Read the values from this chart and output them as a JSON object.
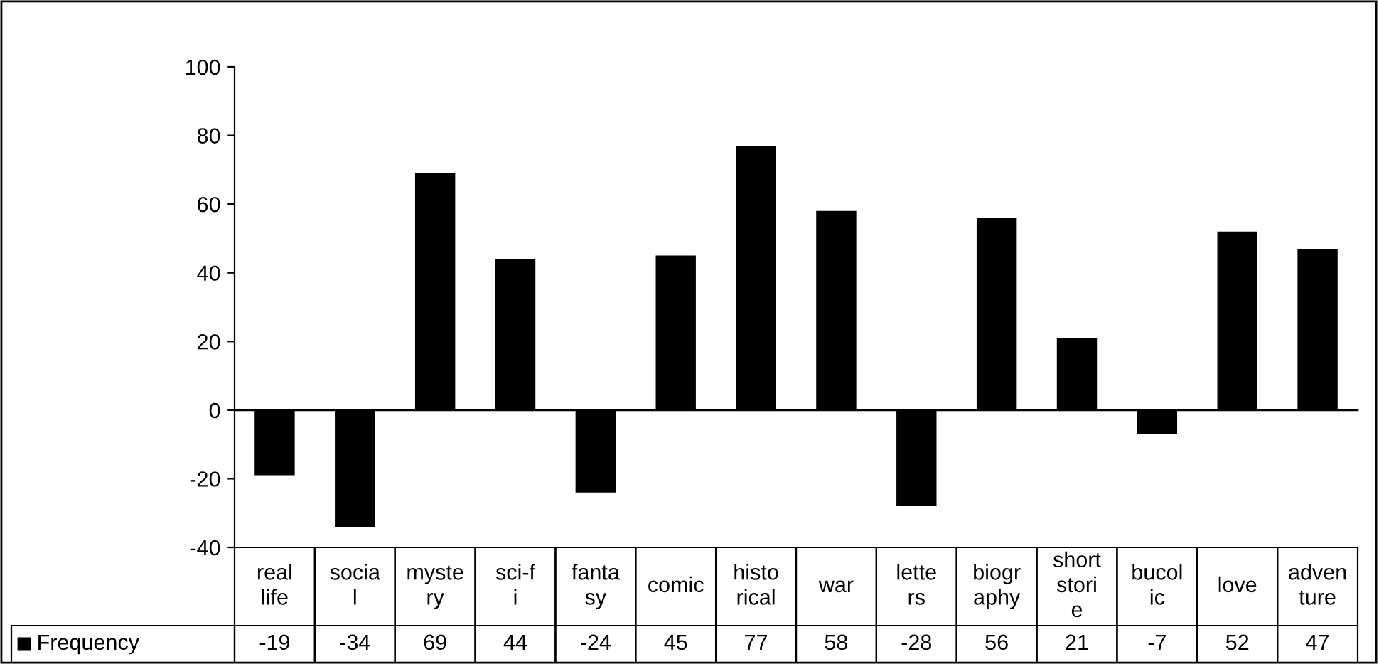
{
  "chart_data": {
    "type": "bar",
    "categories": [
      "real life",
      "social",
      "mystery",
      "sci-fi",
      "fantasy",
      "comic",
      "historical",
      "war",
      "letters",
      "biography",
      "short storie",
      "bucolic",
      "love",
      "adventure"
    ],
    "series": [
      {
        "name": "Frequency",
        "color": "#000000",
        "values": [
          -19,
          -34,
          69,
          44,
          -24,
          45,
          77,
          58,
          -28,
          56,
          21,
          -7,
          52,
          47
        ]
      }
    ],
    "ylim": [
      -40,
      100
    ],
    "yticks": [
      -40,
      -20,
      0,
      20,
      40,
      60,
      80,
      100
    ],
    "legend": "bottom",
    "data_labels": true
  }
}
